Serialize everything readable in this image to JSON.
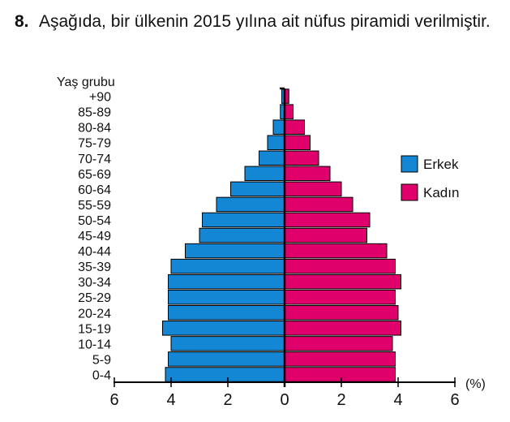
{
  "question": {
    "number": "8.",
    "text": "Aşağıda, bir ülkenin 2015 yılına ait nüfus piramidi verilmiştir."
  },
  "chart_data": {
    "type": "bar",
    "orientation": "horizontal-population-pyramid",
    "ylabel": "Yaş grubu",
    "xlabel": "",
    "x_unit": "(%)",
    "xlim": [
      -6,
      6
    ],
    "x_ticks": [
      {
        "value": -6,
        "label": "6"
      },
      {
        "value": -4,
        "label": "4"
      },
      {
        "value": -2,
        "label": "2"
      },
      {
        "value": 0,
        "label": "0"
      },
      {
        "value": 2,
        "label": "2"
      },
      {
        "value": 4,
        "label": "4"
      },
      {
        "value": 6,
        "label": "6"
      }
    ],
    "categories": [
      "0-4",
      "5-9",
      "10-14",
      "15-19",
      "20-24",
      "25-29",
      "30-34",
      "35-39",
      "40-44",
      "45-49",
      "50-54",
      "55-59",
      "60-64",
      "65-69",
      "70-74",
      "75-79",
      "80-84",
      "85-89",
      "+90"
    ],
    "series": [
      {
        "name": "Erkek",
        "side": "left",
        "color": "#1487d4",
        "values": [
          4.2,
          4.1,
          4.0,
          4.3,
          4.1,
          4.1,
          4.1,
          4.0,
          3.5,
          3.0,
          2.9,
          2.4,
          1.9,
          1.4,
          0.9,
          0.6,
          0.4,
          0.15,
          0.1
        ]
      },
      {
        "name": "Kadın",
        "side": "right",
        "color": "#e0006b",
        "values": [
          3.9,
          3.9,
          3.8,
          4.1,
          4.0,
          3.9,
          4.1,
          3.9,
          3.6,
          2.9,
          3.0,
          2.4,
          2.0,
          1.6,
          1.2,
          0.9,
          0.7,
          0.3,
          0.15
        ]
      }
    ],
    "legend_position": "right",
    "grid": false
  }
}
